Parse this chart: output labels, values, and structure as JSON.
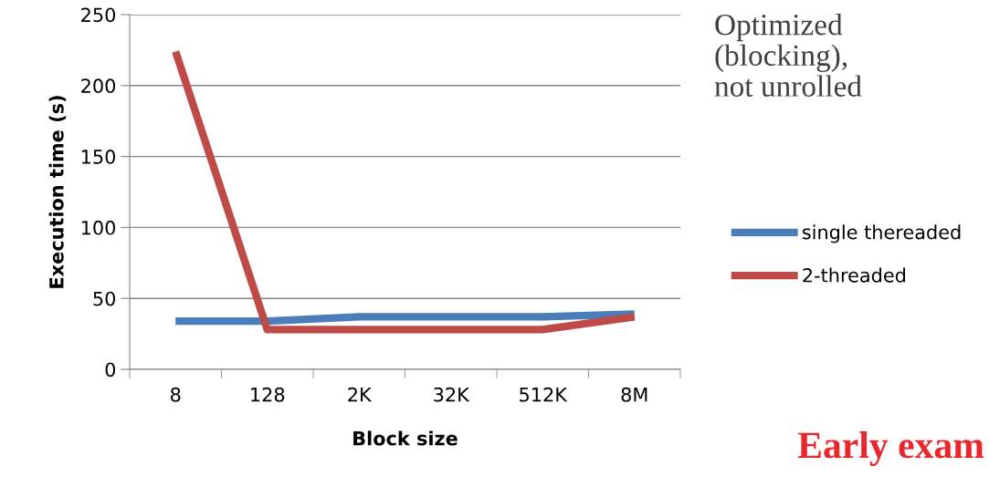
{
  "chart_data": {
    "type": "line",
    "title": "Optimized\n(blocking),\nnot unrolled",
    "xlabel": "Block size",
    "ylabel": "Execution time (s)",
    "categories": [
      "8",
      "128",
      "2K",
      "32K",
      "512K",
      "8M"
    ],
    "series": [
      {
        "name": "single thereaded",
        "color": "#4a7ebb",
        "values": [
          34,
          34,
          37,
          37,
          37,
          39
        ]
      },
      {
        "name": "2-threaded",
        "color": "#be4b48",
        "values": [
          224,
          28,
          28,
          28,
          28,
          37
        ]
      }
    ],
    "ylim": [
      0,
      250
    ],
    "yticks": [
      0,
      50,
      100,
      150,
      200,
      250
    ],
    "grid": "y",
    "legend": "right",
    "marker": "none",
    "line_style": "solid",
    "annotations": [
      "Early exam"
    ]
  }
}
